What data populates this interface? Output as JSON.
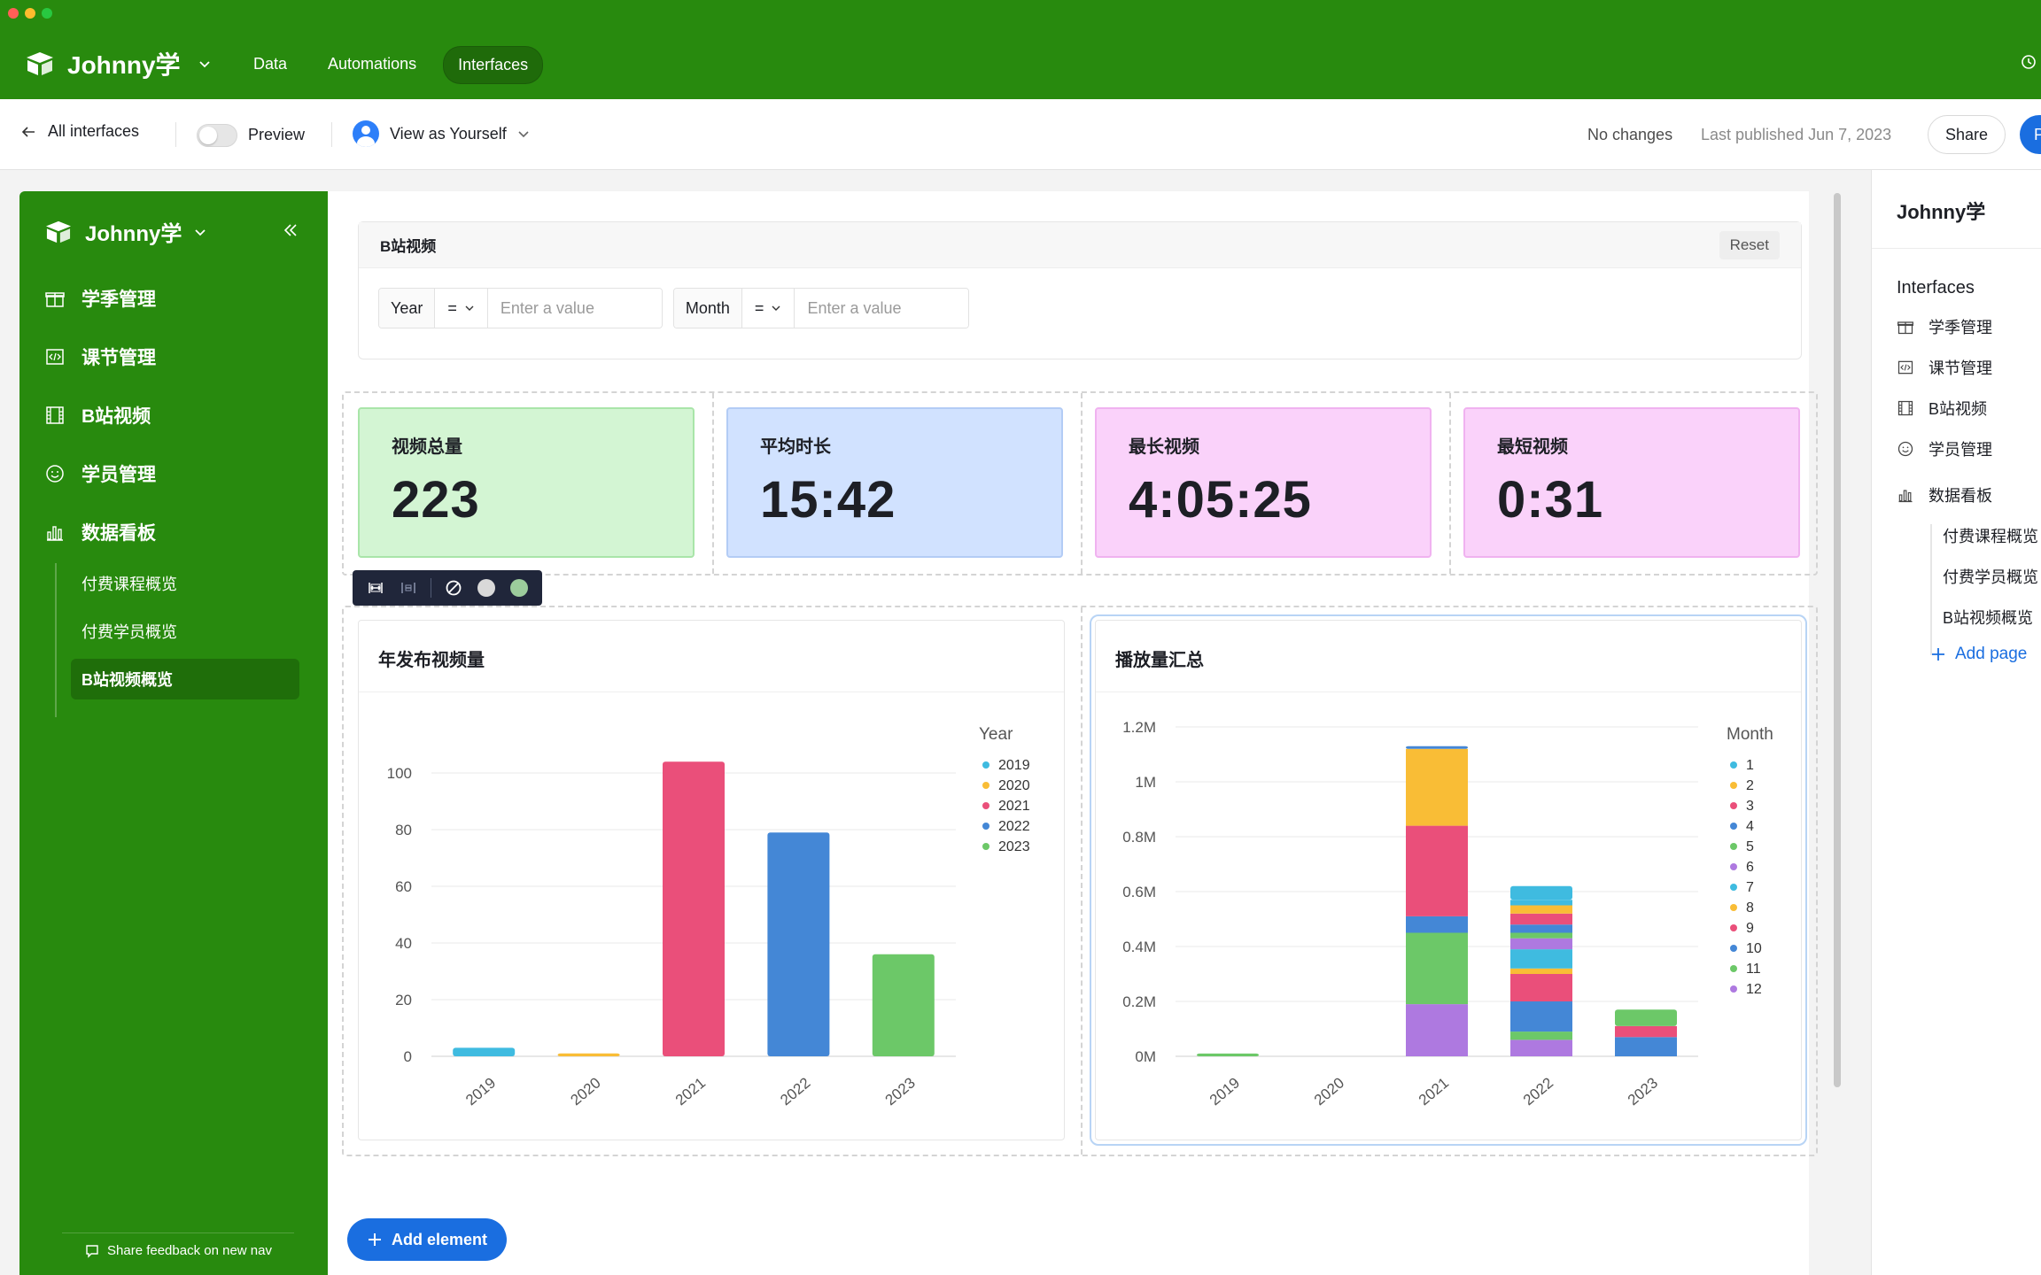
{
  "app": {
    "workspace": "Johnny学",
    "nav": [
      {
        "label": "Data",
        "active": false
      },
      {
        "label": "Automations",
        "active": false
      },
      {
        "label": "Interfaces",
        "active": true
      }
    ]
  },
  "toolbar": {
    "back_label": "All interfaces",
    "preview_label": "Preview",
    "view_as_label": "View as Yourself",
    "status": "No changes",
    "last_published": "Last published Jun 7, 2023",
    "share_label": "Share",
    "publish_label": "P"
  },
  "sidebar": {
    "title": "Johnny学",
    "items": [
      {
        "label": "学季管理",
        "icon": "gift-icon"
      },
      {
        "label": "课节管理",
        "icon": "code-icon"
      },
      {
        "label": "B站视频",
        "icon": "film-icon"
      },
      {
        "label": "学员管理",
        "icon": "smile-icon"
      },
      {
        "label": "数据看板",
        "icon": "bar-chart-icon"
      }
    ],
    "subitems": [
      {
        "label": "付费课程概览",
        "active": false
      },
      {
        "label": "付费学员概览",
        "active": false
      },
      {
        "label": "B站视频概览",
        "active": true
      }
    ],
    "feedback": "Share feedback on new nav"
  },
  "filter": {
    "title": "B站视频",
    "reset_label": "Reset",
    "fields": [
      {
        "field": "Year",
        "operator": "=",
        "placeholder": "Enter a value"
      },
      {
        "field": "Month",
        "operator": "=",
        "placeholder": "Enter a value"
      }
    ]
  },
  "stats": [
    {
      "label": "视频总量",
      "value": "223",
      "bg": "#d3f5d3",
      "border": "#a9e5a9"
    },
    {
      "label": "平均时长",
      "value": "15:42",
      "bg": "#d1e2ff",
      "border": "#b3ccf5"
    },
    {
      "label": "最长视频",
      "value": "4:05:25",
      "bg": "#fad2fa",
      "border": "#f0b2f0"
    },
    {
      "label": "最短视频",
      "value": "0:31",
      "bg": "#fad2fa",
      "border": "#f0b2f0"
    }
  ],
  "element_toolbar": {
    "dot_colors": [
      "#d9d9d9",
      "#9ccc9c"
    ]
  },
  "add_element_label": "Add element",
  "right_panel": {
    "title": "Johnny学",
    "section": "Interfaces",
    "items": [
      {
        "label": "学季管理",
        "icon": "gift-icon"
      },
      {
        "label": "课节管理",
        "icon": "code-icon"
      },
      {
        "label": "B站视频",
        "icon": "film-icon"
      },
      {
        "label": "学员管理",
        "icon": "smile-icon"
      },
      {
        "label": "数据看板",
        "icon": "bar-chart-icon"
      }
    ],
    "subitems": [
      "付费课程概览",
      "付费学员概览",
      "B站视频概览"
    ],
    "add_page_label": "Add page"
  },
  "chart_data": [
    {
      "type": "bar",
      "title": "年发布视频量",
      "categories": [
        "2019",
        "2020",
        "2021",
        "2022",
        "2023"
      ],
      "values": [
        3,
        1,
        104,
        79,
        36
      ],
      "colors": [
        "#3fbbe0",
        "#f9bd36",
        "#ea4f7a",
        "#4487d6",
        "#6cc868"
      ],
      "ylim": [
        0,
        110
      ],
      "yticks": [
        0,
        20,
        40,
        60,
        80,
        100
      ],
      "legend_title": "Year",
      "legend": [
        "2019",
        "2020",
        "2021",
        "2022",
        "2023"
      ],
      "legend_position": "right",
      "grid": true
    },
    {
      "type": "bar",
      "stacked": true,
      "title": "播放量汇总",
      "categories": [
        "2019",
        "2020",
        "2021",
        "2022",
        "2023"
      ],
      "ylim": [
        0,
        1200000
      ],
      "yticks": [
        "0M",
        "0.2M",
        "0.4M",
        "0.6M",
        "0.8M",
        "1M",
        "1.2M"
      ],
      "legend_title": "Month",
      "legend_position": "right",
      "grid": true,
      "series": [
        {
          "name": "1",
          "color": "#3fbbe0",
          "values": [
            0,
            0,
            0,
            20000,
            0
          ]
        },
        {
          "name": "2",
          "color": "#f9bd36",
          "values": [
            0,
            0,
            0,
            30000,
            0
          ]
        },
        {
          "name": "3",
          "color": "#ea4f7a",
          "values": [
            0,
            0,
            0,
            40000,
            0
          ]
        },
        {
          "name": "4",
          "color": "#4487d6",
          "values": [
            0,
            0,
            0,
            30000,
            0
          ]
        },
        {
          "name": "5",
          "color": "#6cc868",
          "values": [
            10000,
            0,
            0,
            20000,
            60000
          ]
        },
        {
          "name": "6",
          "color": "#ae79e0",
          "values": [
            0,
            0,
            0,
            40000,
            0
          ]
        },
        {
          "name": "7",
          "color": "#3fbbe0",
          "values": [
            0,
            0,
            0,
            70000,
            0
          ]
        },
        {
          "name": "8",
          "color": "#f9bd36",
          "values": [
            0,
            0,
            0,
            20000,
            0
          ]
        },
        {
          "name": "9",
          "color": "#ea4f7a",
          "values": [
            0,
            0,
            0,
            100000,
            40000
          ]
        },
        {
          "name": "10",
          "color": "#4487d6",
          "values": [
            0,
            0,
            60000,
            110000,
            70000
          ]
        },
        {
          "name": "11",
          "color": "#6cc868",
          "values": [
            0,
            0,
            260000,
            30000,
            0
          ]
        },
        {
          "name": "12",
          "color": "#ae79e0",
          "values": [
            0,
            0,
            190000,
            60000,
            0
          ]
        }
      ],
      "extra_stack_layers": [
        {
          "category": "2021",
          "layers": [
            {
              "name": "9",
              "color": "#ea4f7a",
              "value": 330000
            },
            {
              "name": "8",
              "color": "#f9bd36",
              "value": 280000
            },
            {
              "name": "10",
              "color": "#4487d6",
              "value": 10000
            }
          ]
        },
        {
          "category": "2022",
          "layers": [
            {
              "name": "1",
              "color": "#3fbbe0",
              "value": 50000
            }
          ]
        }
      ]
    }
  ]
}
